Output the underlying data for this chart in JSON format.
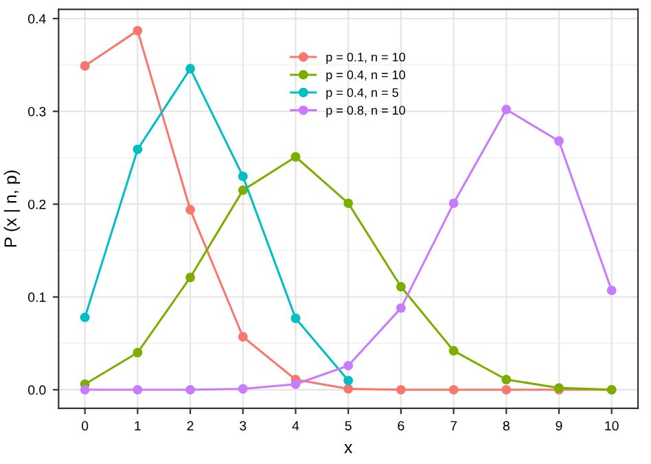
{
  "chart_data": {
    "type": "line",
    "xlabel": "x",
    "ylabel": "P (x | n, p)",
    "x": [
      0,
      1,
      2,
      3,
      4,
      5,
      6,
      7,
      8,
      9,
      10
    ],
    "series": [
      {
        "name": "p = 0.1, n = 10",
        "color": "#f8766d",
        "values": [
          0.349,
          0.387,
          0.194,
          0.057,
          0.011,
          0.001,
          0.0,
          0.0,
          0.0,
          0.0,
          0.0
        ]
      },
      {
        "name": "p = 0.4, n = 10",
        "color": "#7cae00",
        "values": [
          0.006,
          0.04,
          0.121,
          0.215,
          0.251,
          0.201,
          0.111,
          0.042,
          0.011,
          0.002,
          0.0
        ]
      },
      {
        "name": "p = 0.4, n = 5",
        "color": "#00bfc4",
        "x": [
          0,
          1,
          2,
          3,
          4,
          5
        ],
        "values": [
          0.078,
          0.259,
          0.346,
          0.23,
          0.077,
          0.01
        ]
      },
      {
        "name": "p = 0.8, n = 10",
        "color": "#c77cff",
        "values": [
          0.0,
          0.0,
          0.0,
          0.001,
          0.006,
          0.026,
          0.088,
          0.201,
          0.302,
          0.268,
          0.107
        ]
      }
    ],
    "xlim": [
      -0.5,
      10.5
    ],
    "ylim": [
      -0.02,
      0.41
    ],
    "xticks": [
      0,
      1,
      2,
      3,
      4,
      5,
      6,
      7,
      8,
      9,
      10
    ],
    "yticks": [
      {
        "value": 0,
        "label": "0.0"
      },
      0.1,
      0.2,
      0.3,
      0.4
    ],
    "grid": true,
    "legend": "top",
    "marker": "circle",
    "line_style": "solid"
  }
}
